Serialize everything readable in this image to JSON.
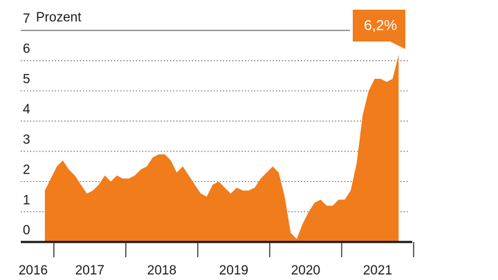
{
  "chart_data": {
    "type": "area",
    "ylabel": "Prozent",
    "annotation": "6,2%",
    "color": "#f07c1c",
    "x": [
      2016.875,
      2016.958,
      2017.042,
      2017.125,
      2017.208,
      2017.292,
      2017.375,
      2017.458,
      2017.542,
      2017.625,
      2017.708,
      2017.792,
      2017.875,
      2017.958,
      2018.042,
      2018.125,
      2018.208,
      2018.292,
      2018.375,
      2018.458,
      2018.542,
      2018.625,
      2018.708,
      2018.792,
      2018.875,
      2018.958,
      2019.042,
      2019.125,
      2019.208,
      2019.292,
      2019.375,
      2019.458,
      2019.542,
      2019.625,
      2019.708,
      2019.792,
      2019.875,
      2019.958,
      2020.042,
      2020.125,
      2020.208,
      2020.292,
      2020.375,
      2020.458,
      2020.542,
      2020.625,
      2020.708,
      2020.792,
      2020.875,
      2020.958,
      2021.042,
      2021.125,
      2021.208,
      2021.292,
      2021.375,
      2021.458,
      2021.542,
      2021.625,
      2021.708,
      2021.792
    ],
    "values": [
      1.7,
      2.1,
      2.5,
      2.7,
      2.4,
      2.2,
      1.9,
      1.6,
      1.7,
      1.9,
      2.2,
      2.0,
      2.2,
      2.1,
      2.1,
      2.2,
      2.4,
      2.5,
      2.8,
      2.9,
      2.9,
      2.7,
      2.3,
      2.5,
      2.2,
      1.9,
      1.6,
      1.5,
      1.9,
      2.0,
      1.8,
      1.6,
      1.8,
      1.7,
      1.7,
      1.8,
      2.1,
      2.3,
      2.5,
      2.3,
      1.5,
      0.3,
      0.1,
      0.6,
      1.0,
      1.3,
      1.4,
      1.2,
      1.2,
      1.4,
      1.4,
      1.7,
      2.6,
      4.2,
      5.0,
      5.4,
      5.4,
      5.3,
      5.4,
      6.2
    ],
    "xlim": [
      2016.54,
      2022
    ],
    "xticks": [
      2017,
      2018,
      2019,
      2020,
      2021,
      2022
    ],
    "year_labels": [
      "2016",
      "2017",
      "2018",
      "2019",
      "2020",
      "2021"
    ],
    "ylim": [
      0,
      7
    ],
    "yticks": [
      0,
      1,
      2,
      3,
      4,
      5,
      6,
      7
    ],
    "grid": true
  }
}
